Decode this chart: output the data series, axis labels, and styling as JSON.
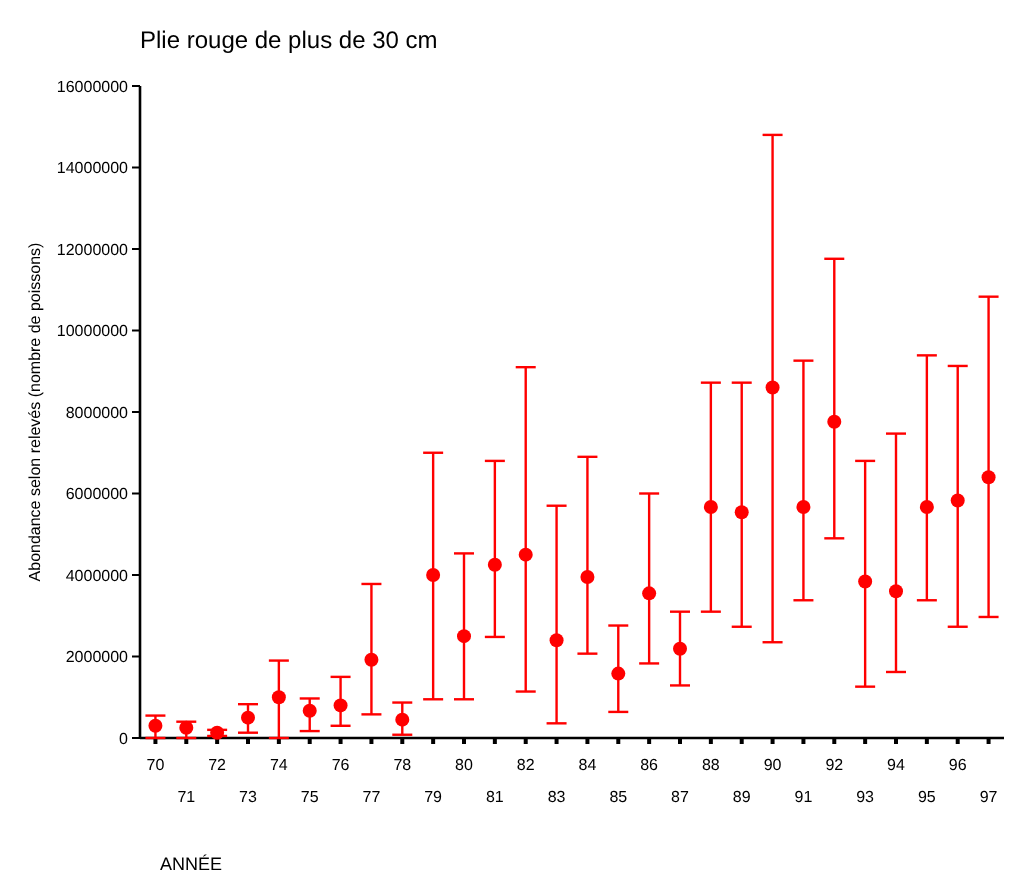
{
  "chart_data": {
    "type": "scatter",
    "title": "Plie rouge de plus de 30 cm",
    "xlabel": "ANNÉE",
    "ylabel": "Abondance selon relevés (nombre de poissons)",
    "categories": [
      "70",
      "71",
      "72",
      "73",
      "74",
      "75",
      "76",
      "77",
      "78",
      "79",
      "80",
      "81",
      "82",
      "83",
      "84",
      "85",
      "86",
      "87",
      "88",
      "89",
      "90",
      "91",
      "92",
      "93",
      "94",
      "95",
      "96",
      "97"
    ],
    "series": [
      {
        "color": "#ff0000",
        "values": [
          300000,
          250000,
          130000,
          500000,
          1000000,
          670000,
          800000,
          1920000,
          450000,
          4000000,
          2500000,
          4250000,
          4500000,
          2400000,
          3950000,
          1580000,
          3550000,
          2190000,
          5670000,
          5540000,
          8600000,
          5670000,
          7760000,
          3840000,
          3600000,
          5670000,
          5830000,
          6400000
        ],
        "errors": [
          [
            0,
            550000
          ],
          [
            0,
            400000
          ],
          [
            50000,
            200000
          ],
          [
            130000,
            830000
          ],
          [
            0,
            1900000
          ],
          [
            170000,
            970000
          ],
          [
            300000,
            1500000
          ],
          [
            580000,
            3780000
          ],
          [
            80000,
            870000
          ],
          [
            950000,
            7000000
          ],
          [
            950000,
            4530000
          ],
          [
            2480000,
            6800000
          ],
          [
            1140000,
            9100000
          ],
          [
            360000,
            5700000
          ],
          [
            2070000,
            6900000
          ],
          [
            640000,
            2760000
          ],
          [
            1830000,
            6000000
          ],
          [
            1290000,
            3100000
          ],
          [
            3100000,
            8720000
          ],
          [
            2730000,
            8720000
          ],
          [
            2350000,
            14800000
          ],
          [
            3380000,
            9260000
          ],
          [
            4900000,
            11760000
          ],
          [
            1260000,
            6800000
          ],
          [
            1620000,
            7470000
          ],
          [
            3380000,
            9390000
          ],
          [
            2730000,
            9130000
          ],
          [
            2970000,
            10830000
          ]
        ]
      }
    ],
    "ylim": [
      0,
      16000000
    ],
    "yticks": [
      0,
      2000000,
      4000000,
      6000000,
      8000000,
      10000000,
      12000000,
      14000000,
      16000000
    ],
    "marker": "circle"
  }
}
